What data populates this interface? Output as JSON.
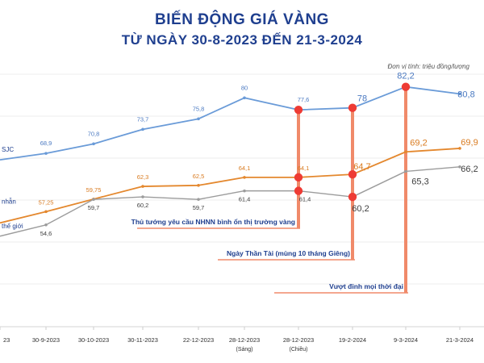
{
  "title": "BIẾN ĐỘNG GIÁ VÀNG",
  "subtitle": "TỪ NGÀY 30-8-2023 ĐẾN 21-3-2024",
  "unit_note": "Đơn vị tính: triệu đồng/lượng",
  "colors": {
    "background": "#ffffff",
    "title": "#1f3f8f",
    "sjc": "#6a9bd8",
    "ring": "#e4882e",
    "world": "#9c9c9c",
    "marker": "#ee3b34",
    "annotation_bar": "#f08a6a"
  },
  "chart_data": {
    "type": "line",
    "title": "BIẾN ĐỘNG GIÁ VÀNG",
    "subtitle": "TỪ NGÀY 30-8-2023 ĐẾN 21-3-2024",
    "ylabel": "Đơn vị tính: triệu đồng/lượng",
    "categories": [
      [
        "23"
      ],
      [
        "30-9-2023"
      ],
      [
        "30-10-2023"
      ],
      [
        "30-11-2023"
      ],
      [
        "22-12-2023"
      ],
      [
        "28-12-2023",
        "(Sáng)"
      ],
      [
        "28-12-2023",
        "(Chiều)"
      ],
      [
        "19-2-2024"
      ],
      [
        "9-3-2024"
      ],
      [
        "21-3-2024"
      ]
    ],
    "ylim": [
      50,
      85
    ],
    "grid": false,
    "series": [
      {
        "name": "SJC",
        "color": "#6a9bd8",
        "values": [
          null,
          68.9,
          70.8,
          73.7,
          75.8,
          80,
          77.6,
          78,
          82.2,
          80.8
        ],
        "labels": [
          "",
          "68,9",
          "70,8",
          "73,7",
          "75,8",
          "80",
          "77,6",
          "78",
          "82,2",
          "80,8"
        ]
      },
      {
        "name": "nhẫn",
        "color": "#e4882e",
        "values": [
          null,
          57.25,
          59.75,
          62.3,
          62.5,
          64.1,
          64.1,
          64.7,
          69.2,
          69.9
        ],
        "labels": [
          "",
          "57,25",
          "59,75",
          "62,3",
          "62,5",
          "64,1",
          "64,1",
          "64,7",
          "69,2",
          "69,9"
        ]
      },
      {
        "name": "thế giới",
        "color": "#9c9c9c",
        "values": [
          null,
          54.6,
          59.7,
          60.2,
          59.7,
          61.4,
          61.4,
          60.2,
          65.3,
          66.2
        ],
        "labels": [
          "",
          "54,6",
          "59,7",
          "60,2",
          "59,7",
          "61,4",
          "61,4",
          "60,2",
          "65,3",
          "66,2"
        ]
      }
    ],
    "annotations": [
      {
        "text": "Thủ tướng yêu cầu NHNN bình ổn thị trường vàng",
        "category_index": 6
      },
      {
        "text": "Ngày Thần Tài (mùng 10 tháng Giêng)",
        "category_index": 7
      },
      {
        "text": "Vượt đỉnh mọi thời đại",
        "category_index": 8
      }
    ]
  }
}
